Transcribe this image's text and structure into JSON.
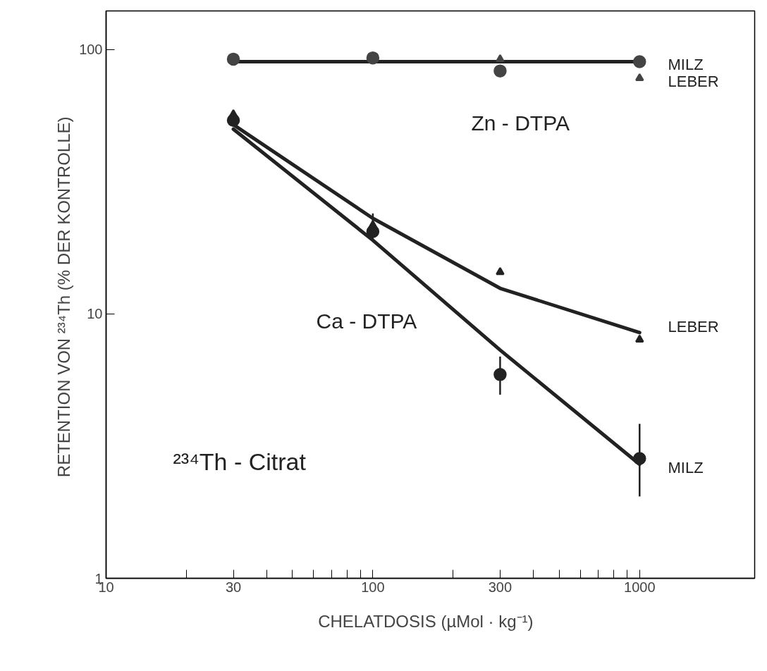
{
  "chart_data": {
    "type": "scatter",
    "xlabel": "CHELATDOSIS   (µMol · kg⁻¹)",
    "ylabel": "RETENTION VON ²³⁴Th  (% DER KONTROLLE)",
    "log": "xy",
    "grid": false,
    "xlim": [
      10,
      2700
    ],
    "ylim": [
      1,
      140
    ],
    "xticks": [
      10,
      {
        "value": 20,
        "label": null
      },
      30,
      {
        "value": 40,
        "label": null
      },
      {
        "value": 50,
        "label": null
      },
      {
        "value": 60,
        "label": null
      },
      {
        "value": 70,
        "label": null
      },
      {
        "value": 80,
        "label": null
      },
      {
        "value": 90,
        "label": null
      },
      100,
      {
        "value": 200,
        "label": null
      },
      300,
      {
        "value": 400,
        "label": null
      },
      {
        "value": 500,
        "label": null
      },
      {
        "value": 600,
        "label": null
      },
      {
        "value": 700,
        "label": null
      },
      {
        "value": 800,
        "label": null
      },
      {
        "value": 900,
        "label": null
      },
      1000
    ],
    "yticks": [
      1,
      10,
      100
    ],
    "series": [
      {
        "type": "line",
        "color": "#222222",
        "x": [
          30,
          100,
          300,
          1000
        ],
        "values": [
          90,
          90,
          90,
          90
        ]
      },
      {
        "type": "line",
        "color": "#222222",
        "x": [
          30,
          100,
          300,
          1000
        ],
        "values": [
          52,
          23,
          12.5,
          8.5
        ]
      },
      {
        "type": "line",
        "color": "#222222",
        "x": [
          30,
          100,
          300,
          1000
        ],
        "values": [
          50,
          19,
          7.3,
          2.7
        ]
      },
      {
        "color": "#444444",
        "x": [
          30,
          100,
          300,
          1000
        ],
        "values": [
          92,
          93,
          83,
          90
        ],
        "marker": "circle"
      },
      {
        "color": "#444444",
        "x": [
          300,
          1000
        ],
        "values": [
          92,
          78
        ],
        "marker": "triangle"
      },
      {
        "color": "#222222",
        "x": [
          30,
          100,
          300,
          1000
        ],
        "values": [
          57,
          21.7,
          14.4,
          8.0
        ],
        "marker": "triangle"
      },
      {
        "color": "#222222",
        "x": [
          30,
          100,
          300,
          1000
        ],
        "values": [
          54,
          20.5,
          5.9,
          2.84
        ],
        "marker": "circle",
        "errors": [
          null,
          [
            19,
            24
          ],
          [
            4.95,
            6.9
          ],
          [
            2.04,
            3.84
          ]
        ]
      }
    ],
    "annotations": [
      "MILZ",
      "LEBER",
      "Zn - DTPA",
      "LEBER",
      "MILZ",
      "Ca - DTPA",
      "²³⁴Th - Citrat"
    ]
  }
}
